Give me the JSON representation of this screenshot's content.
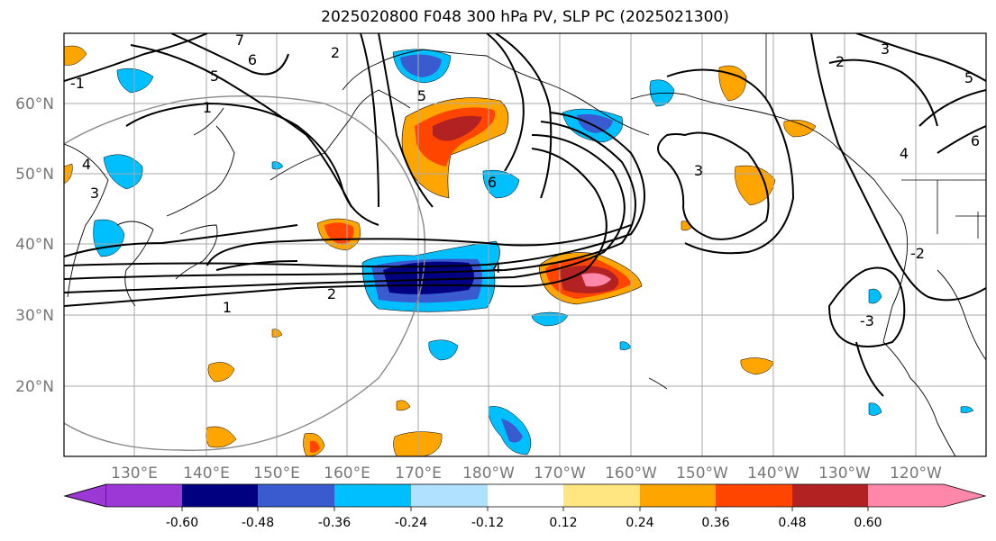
{
  "title": "2025020800 F048 300 hPa PV, SLP PC (2025021300)",
  "lat_labels": [
    "60°N",
    "50°N",
    "40°N",
    "30°N",
    "20°N"
  ],
  "lon_labels": [
    "130°E",
    "140°E",
    "150°E",
    "160°E",
    "170°E",
    "180°W",
    "170°W",
    "160°W",
    "150°W",
    "140°W",
    "130°W",
    "120°W"
  ],
  "colorbar": {
    "colors": [
      "#9b38d6",
      "#000080",
      "#3a5bd0",
      "#00bfff",
      "#b0e2ff",
      "#ffffff",
      "#ffe680",
      "#ffa500",
      "#ff4500",
      "#b22222",
      "#ff88aa"
    ],
    "tick_labels": [
      "-0.60",
      "-0.48",
      "-0.36",
      "-0.24",
      "-0.12",
      "0.12",
      "0.24",
      "0.36",
      "0.48",
      "0.60"
    ]
  },
  "contour_labels": [
    "1",
    "2",
    "3",
    "4",
    "5",
    "6",
    "7",
    "1",
    "2",
    "3",
    "4",
    "5",
    "6",
    "2",
    "3",
    "4",
    "5",
    "6",
    "-1",
    "-2",
    "-3"
  ]
}
